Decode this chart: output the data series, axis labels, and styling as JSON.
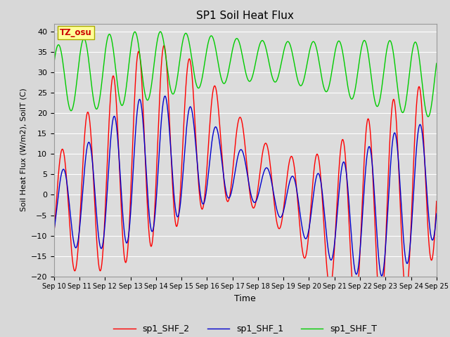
{
  "title": "SP1 Soil Heat Flux",
  "xlabel": "Time",
  "ylabel": "Soil Heat Flux (W/m2), SoilT (C)",
  "ylim": [
    -20,
    42
  ],
  "yticks": [
    -20,
    -15,
    -10,
    -5,
    0,
    5,
    10,
    15,
    20,
    25,
    30,
    35,
    40
  ],
  "bg_color": "#dcdcdc",
  "fig_bg_color": "#d8d8d8",
  "legend_labels": [
    "sp1_SHF_2",
    "sp1_SHF_1",
    "sp1_SHF_T"
  ],
  "legend_colors": [
    "#ff0000",
    "#0000cc",
    "#00cc00"
  ],
  "annotation_text": "TZ_osu",
  "annotation_color": "#cc0000",
  "annotation_bg": "#ffff99",
  "annotation_border": "#aaaa00",
  "x_tick_labels": [
    "Sep 10",
    "Sep 11",
    "Sep 12",
    "Sep 13",
    "Sep 14",
    "Sep 15",
    "Sep 16",
    "Sep 17",
    "Sep 18",
    "Sep 19",
    "Sep 20",
    "Sep 21",
    "Sep 22",
    "Sep 23",
    "Sep 24",
    "Sep 25"
  ],
  "n_days": 15,
  "points_per_day": 144
}
